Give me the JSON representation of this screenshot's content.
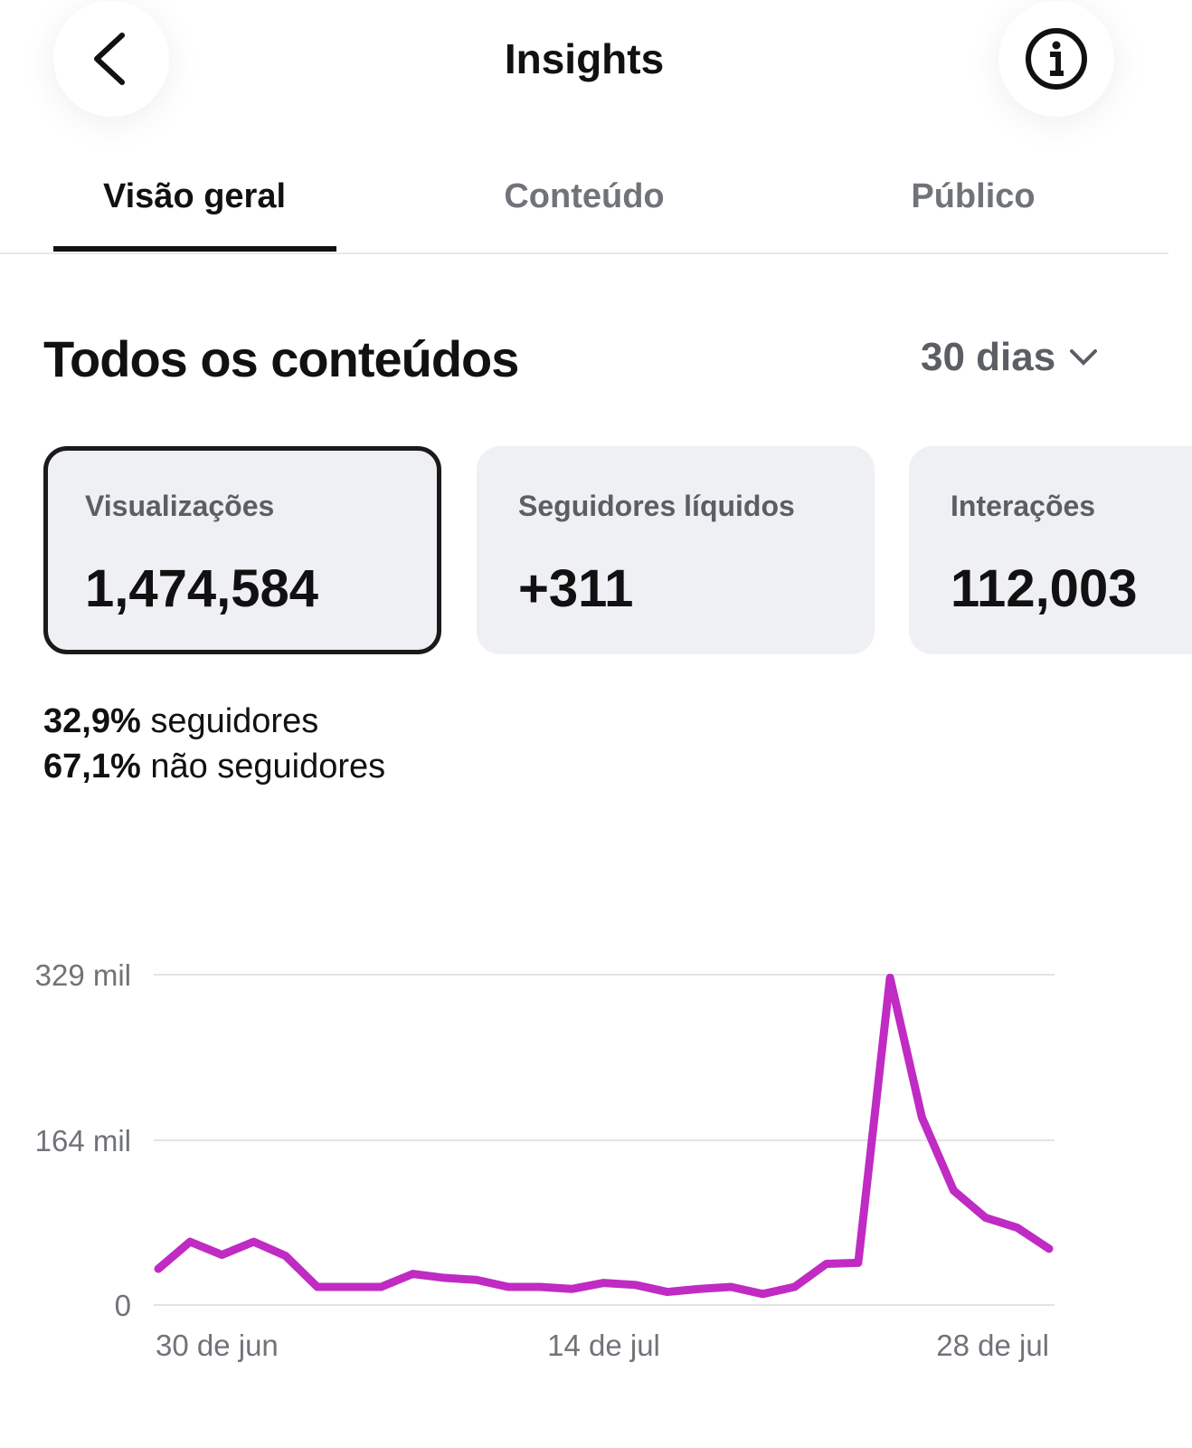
{
  "header": {
    "title": "Insights"
  },
  "tabs": [
    "Visão geral",
    "Conteúdo",
    "Público"
  ],
  "section": {
    "title": "Todos os conteúdos",
    "period": "30 dias"
  },
  "cards": [
    {
      "label": "Visualizações",
      "value": "1,474,584"
    },
    {
      "label": "Seguidores líquidos",
      "value": "+311"
    },
    {
      "label": "Interações",
      "value": "112,003"
    }
  ],
  "breakdown": [
    {
      "percent": "32,9%",
      "label": "seguidores"
    },
    {
      "percent": "67,1%",
      "label": "não seguidores"
    }
  ],
  "chart_data": {
    "type": "line",
    "color": "#c02bc3",
    "categories": [
      "30 de jun",
      null,
      null,
      null,
      null,
      null,
      null,
      null,
      null,
      null,
      null,
      null,
      null,
      null,
      "14 de jul",
      null,
      null,
      null,
      null,
      null,
      null,
      null,
      null,
      null,
      null,
      null,
      null,
      null,
      "28 de jul"
    ],
    "values": [
      36,
      63,
      50,
      63,
      49,
      18,
      18,
      18,
      31,
      27,
      25,
      18,
      18,
      16,
      22,
      20,
      13,
      16,
      18,
      11,
      18,
      41,
      42,
      326,
      187,
      114,
      87,
      77,
      56
    ],
    "ylim": [
      0,
      329
    ],
    "yticks": [
      0,
      {
        "value": 164,
        "label": "164 mil"
      },
      {
        "value": 329,
        "label": "329 mil"
      }
    ],
    "grid": true
  }
}
